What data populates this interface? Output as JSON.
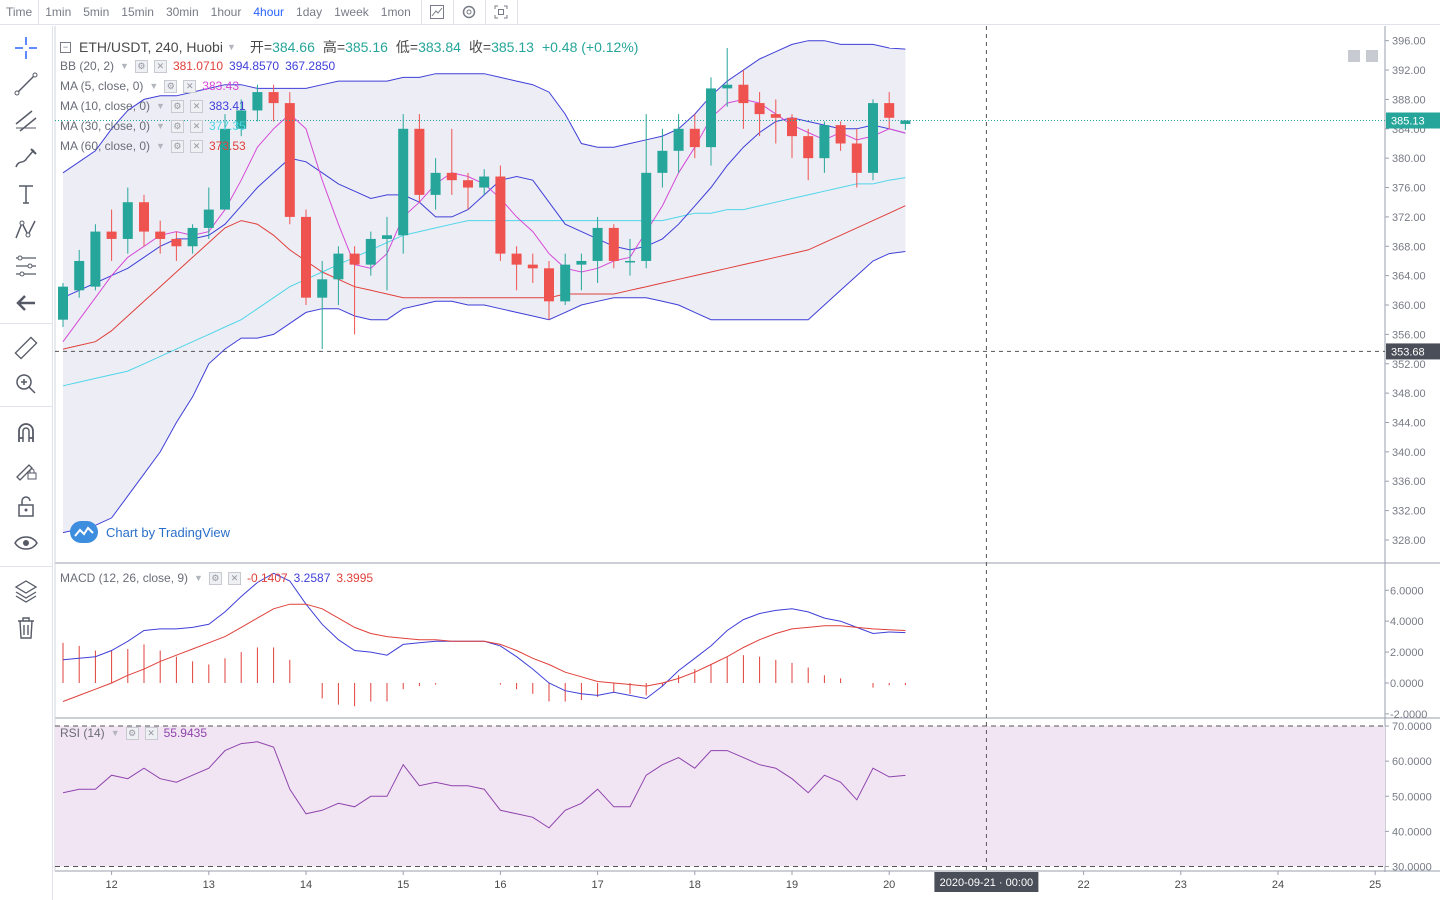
{
  "toolbar": {
    "timeframes": [
      "Time",
      "1min",
      "5min",
      "15min",
      "30min",
      "1hour",
      "4hour",
      "1day",
      "1week",
      "1mon"
    ],
    "active": "4hour",
    "icons": [
      "chart-style-icon",
      "settings-icon",
      "fullscreen-icon"
    ]
  },
  "left_tools": [
    "crosshair-icon",
    "trend-line-icon",
    "parallel-lines-icon",
    "brush-icon",
    "text-icon",
    "pattern-icon",
    "fib-icon",
    "back-arrow-icon",
    "ruler-icon",
    "zoom-in-icon",
    "magnet-icon",
    "lock-draw-icon",
    "lock-icon",
    "eye-icon",
    "layers-icon",
    "trash-icon"
  ],
  "legend": {
    "symbol": "ETH/USDT, 240, Huobi",
    "open_label": "开=",
    "open": "384.66",
    "high_label": "高=",
    "high": "385.16",
    "low_label": "低=",
    "low": "383.84",
    "close_label": "收=",
    "close": "385.13",
    "change": "+0.48 (+0.12%)",
    "bb_label": "BB (20, 2)",
    "bb_mid": "381.0710",
    "bb_up": "394.8570",
    "bb_low": "367.2850",
    "ma5_label": "MA (5, close, 0)",
    "ma5": "383.43",
    "ma10_label": "MA (10, close, 0)",
    "ma10": "383.41",
    "ma30_label": "MA (30, close, 0)",
    "ma30": "377.35",
    "ma60_label": "MA (60, close, 0)",
    "ma60": "373.53",
    "macd_label": "MACD (12, 26, close, 9)",
    "macd_hist": "-0.1407",
    "macd_line": "3.2587",
    "macd_signal": "3.3995",
    "rsi_label": "RSI (14)",
    "rsi": "55.9435"
  },
  "watermark": "Chart by TradingView",
  "colors": {
    "up": "#26a69a",
    "down": "#ef5350",
    "bb": "#3f3fd8",
    "ma5": "#d64bd6",
    "ma30": "#4fd6e8",
    "ma60": "#e0403a",
    "macd": "#3f3fd8",
    "signal": "#e0403a",
    "rsi": "#8e44ad",
    "rsi_bg": "#f2e5f3",
    "bb_fill": "#e8e8f4"
  },
  "chart_data": [
    {
      "type": "candlestick",
      "title": "ETH/USDT, 240, Huobi",
      "x_ticks": [
        "12",
        "13",
        "14",
        "15",
        "16",
        "17",
        "18",
        "19",
        "20",
        "2020-09-21 · 00:00",
        "22",
        "23",
        "24",
        "25"
      ],
      "y_ticks": [
        328,
        332,
        336,
        340,
        344,
        348,
        352,
        356,
        360,
        364,
        368,
        372,
        376,
        380,
        384,
        388,
        392,
        396
      ],
      "ylim": [
        325,
        398
      ],
      "last_price": "385.13",
      "crosshair_price": "353.68",
      "crosshair_time": "2020-09-21 · 00:00",
      "candles": [
        [
          358.0,
          362.5,
          357.0,
          363.0
        ],
        [
          362.0,
          366.0,
          361.0,
          367.5
        ],
        [
          362.5,
          370.0,
          362.0,
          371.0
        ],
        [
          370.0,
          369.0,
          366.0,
          373.0
        ],
        [
          369.0,
          374.0,
          367.0,
          376.0
        ],
        [
          374.0,
          370.0,
          368.0,
          375.0
        ],
        [
          370.0,
          369.0,
          367.0,
          371.5
        ],
        [
          369.0,
          368.0,
          366.0,
          370.0
        ],
        [
          368.0,
          370.5,
          367.0,
          371.0
        ],
        [
          370.5,
          373.0,
          369.0,
          376.0
        ],
        [
          373.0,
          384.0,
          373.0,
          386.0
        ],
        [
          384.0,
          386.5,
          383.0,
          388.0
        ],
        [
          386.5,
          389.0,
          385.0,
          390.0
        ],
        [
          389.0,
          387.5,
          385.0,
          390.0
        ],
        [
          387.5,
          372.0,
          371.0,
          389.0
        ],
        [
          372.0,
          361.0,
          360.0,
          373.0
        ],
        [
          361.0,
          363.5,
          354.0,
          366.0
        ],
        [
          363.5,
          367.0,
          360.0,
          368.0
        ],
        [
          367.0,
          365.5,
          356.0,
          368.0
        ],
        [
          365.5,
          369.0,
          364.0,
          370.0
        ],
        [
          369.0,
          369.5,
          362.0,
          372.0
        ],
        [
          369.5,
          384.0,
          367.0,
          386.0
        ],
        [
          384.0,
          375.0,
          374.0,
          386.0
        ],
        [
          375.0,
          378.0,
          373.0,
          380.0
        ],
        [
          378.0,
          377.0,
          375.0,
          384.0
        ],
        [
          377.0,
          376.0,
          373.0,
          378.0
        ],
        [
          376.0,
          377.5,
          375.0,
          378.5
        ],
        [
          377.5,
          367.0,
          366.0,
          379.0
        ],
        [
          367.0,
          365.5,
          362.0,
          368.0
        ],
        [
          365.5,
          365.0,
          363.0,
          367.0
        ],
        [
          365.0,
          360.5,
          358.0,
          366.0
        ],
        [
          360.5,
          365.5,
          360.0,
          367.0
        ],
        [
          365.5,
          366.0,
          362.0,
          367.0
        ],
        [
          366.0,
          370.5,
          363.0,
          372.0
        ],
        [
          370.5,
          366.0,
          365.0,
          371.0
        ],
        [
          366.0,
          366.0,
          364.0,
          369.0
        ],
        [
          366.0,
          378.0,
          365.0,
          386.0
        ],
        [
          378.0,
          381.0,
          376.0,
          384.0
        ],
        [
          381.0,
          384.0,
          378.0,
          386.0
        ],
        [
          384.0,
          381.5,
          380.0,
          386.0
        ],
        [
          381.5,
          389.5,
          379.0,
          391.0
        ],
        [
          389.5,
          390.0,
          387.0,
          395.0
        ],
        [
          390.0,
          387.5,
          384.0,
          392.0
        ],
        [
          387.5,
          386.0,
          383.0,
          389.0
        ],
        [
          386.0,
          385.5,
          382.0,
          388.0
        ],
        [
          385.5,
          383.0,
          380.0,
          386.0
        ],
        [
          383.0,
          380.0,
          377.0,
          384.0
        ],
        [
          380.0,
          384.5,
          378.0,
          385.0
        ],
        [
          384.5,
          382.0,
          381.0,
          385.0
        ],
        [
          382.0,
          378.0,
          376.0,
          384.0
        ],
        [
          378.0,
          387.5,
          377.0,
          388.0
        ],
        [
          387.5,
          385.5,
          384.0,
          389.0
        ],
        [
          384.66,
          385.13,
          383.84,
          385.16
        ]
      ],
      "bb_upper": [
        378.0,
        379.5,
        381.0,
        384.0,
        386.5,
        388.0,
        388.5,
        388.5,
        389.0,
        389.5,
        390.0,
        390.0,
        389.5,
        389.5,
        389.5,
        389.5,
        390.0,
        390.5,
        390.5,
        390.5,
        390.5,
        391.0,
        391.0,
        391.5,
        391.5,
        391.5,
        391.5,
        391.0,
        390.5,
        390.0,
        389.0,
        386.0,
        382.0,
        381.5,
        381.5,
        382.0,
        382.5,
        383.0,
        384.0,
        386.0,
        388.5,
        390.5,
        392.0,
        393.5,
        394.5,
        395.5,
        396.0,
        396.0,
        395.5,
        395.5,
        395.5,
        395.0,
        394.86
      ],
      "bb_lower": [
        329.0,
        329.5,
        330.0,
        331.0,
        334.0,
        337.0,
        340.0,
        344.0,
        347.5,
        352.0,
        354.0,
        355.5,
        355.5,
        356.0,
        357.5,
        359.0,
        359.5,
        359.5,
        358.5,
        358.0,
        358.0,
        359.5,
        360.0,
        360.5,
        360.5,
        360.0,
        360.0,
        359.5,
        359.0,
        358.5,
        358.0,
        359.0,
        360.0,
        360.5,
        361.0,
        361.0,
        361.0,
        360.5,
        360.0,
        359.0,
        358.0,
        358.0,
        358.0,
        358.0,
        358.0,
        358.0,
        358.0,
        360.0,
        362.0,
        364.0,
        366.0,
        367.0,
        367.29
      ],
      "ma5": [
        355.0,
        358.0,
        361.0,
        364.0,
        366.5,
        368.0,
        369.5,
        370.0,
        369.5,
        370.0,
        373.0,
        377.0,
        381.5,
        384.0,
        386.0,
        384.0,
        377.0,
        371.0,
        365.5,
        365.0,
        367.0,
        372.0,
        374.0,
        376.5,
        378.0,
        377.5,
        376.5,
        374.5,
        372.0,
        370.0,
        367.0,
        365.0,
        364.5,
        365.0,
        366.0,
        366.5,
        370.0,
        373.5,
        378.0,
        381.5,
        385.5,
        387.5,
        388.0,
        387.5,
        386.0,
        384.5,
        383.5,
        382.5,
        383.5,
        382.5,
        383.0,
        384.0,
        383.43
      ],
      "ma10": [
        361.0,
        362.0,
        363.0,
        364.0,
        365.0,
        366.5,
        368.0,
        369.0,
        369.0,
        369.5,
        371.0,
        373.5,
        376.0,
        378.0,
        380.0,
        379.5,
        378.0,
        376.5,
        375.5,
        374.5,
        375.0,
        375.0,
        374.0,
        372.0,
        372.0,
        373.0,
        375.0,
        377.0,
        377.5,
        377.0,
        374.0,
        371.0,
        370.0,
        369.0,
        368.0,
        367.5,
        368.0,
        369.0,
        371.0,
        373.5,
        376.0,
        379.0,
        381.5,
        383.5,
        385.0,
        385.5,
        385.0,
        384.5,
        384.0,
        384.0,
        384.5,
        384.0,
        383.41
      ],
      "ma30": [
        349.0,
        349.5,
        350.0,
        350.5,
        351.0,
        352.0,
        353.0,
        354.0,
        355.0,
        356.0,
        357.0,
        358.0,
        359.5,
        361.0,
        362.5,
        363.5,
        364.5,
        365.5,
        366.5,
        367.5,
        368.5,
        369.5,
        370.0,
        370.5,
        371.0,
        371.5,
        371.5,
        371.5,
        371.5,
        371.5,
        371.5,
        371.5,
        371.5,
        371.5,
        371.5,
        371.5,
        371.5,
        371.5,
        372.0,
        372.5,
        372.5,
        373.0,
        373.0,
        373.5,
        374.0,
        374.5,
        375.0,
        375.5,
        376.0,
        376.5,
        376.5,
        377.0,
        377.35
      ],
      "ma60": [
        354.0,
        354.5,
        355.0,
        356.5,
        358.5,
        360.5,
        362.5,
        364.5,
        366.5,
        368.5,
        370.5,
        371.5,
        371.0,
        369.5,
        367.5,
        366.0,
        364.5,
        363.5,
        362.5,
        362.0,
        361.5,
        361.0,
        361.0,
        361.0,
        361.0,
        361.0,
        361.0,
        361.0,
        361.0,
        361.0,
        361.0,
        361.5,
        361.5,
        361.5,
        361.5,
        362.0,
        362.5,
        363.0,
        363.5,
        364.0,
        364.5,
        365.0,
        365.5,
        366.0,
        366.5,
        367.0,
        367.5,
        368.5,
        369.5,
        370.5,
        371.5,
        372.5,
        373.53
      ]
    },
    {
      "type": "line",
      "title": "MACD (12, 26, close, 9)",
      "y_ticks": [
        -2.0,
        0.0,
        2.0,
        4.0,
        6.0
      ],
      "ylim": [
        -2.2,
        7.7
      ],
      "macd": [
        1.5,
        1.6,
        1.7,
        2.1,
        2.7,
        3.4,
        3.5,
        3.5,
        3.6,
        3.8,
        4.6,
        5.6,
        6.5,
        7.1,
        6.6,
        5.1,
        3.8,
        2.8,
        2.1,
        2.0,
        1.8,
        2.5,
        2.6,
        2.7,
        2.7,
        2.7,
        2.7,
        2.4,
        1.7,
        0.9,
        0.0,
        -0.5,
        -0.7,
        -0.8,
        -0.6,
        -0.8,
        -1.0,
        -0.2,
        0.8,
        1.6,
        2.4,
        3.4,
        4.1,
        4.5,
        4.7,
        4.8,
        4.6,
        4.2,
        4.0,
        3.6,
        3.2,
        3.3,
        3.26
      ],
      "signal": [
        -1.2,
        -0.8,
        -0.4,
        0.0,
        0.5,
        0.9,
        1.4,
        1.8,
        2.2,
        2.6,
        3.0,
        3.6,
        4.2,
        4.8,
        5.1,
        5.1,
        4.8,
        4.2,
        3.6,
        3.2,
        3.0,
        2.9,
        2.8,
        2.8,
        2.7,
        2.7,
        2.7,
        2.5,
        2.1,
        1.6,
        1.2,
        0.7,
        0.4,
        0.1,
        0.0,
        -0.1,
        -0.2,
        0.0,
        0.3,
        0.7,
        1.2,
        1.7,
        2.3,
        2.8,
        3.2,
        3.5,
        3.6,
        3.7,
        3.7,
        3.6,
        3.5,
        3.45,
        3.4
      ],
      "hist": [
        2.6,
        2.4,
        2.1,
        2.1,
        2.2,
        2.5,
        2.1,
        1.7,
        1.4,
        1.2,
        1.6,
        2.0,
        2.3,
        2.3,
        1.5,
        0.0,
        -1.0,
        -1.4,
        -1.5,
        -1.2,
        -1.2,
        -0.4,
        -0.2,
        -0.1,
        0.0,
        0.0,
        0.0,
        -0.1,
        -0.4,
        -0.7,
        -1.2,
        -1.2,
        -1.1,
        -0.9,
        -0.6,
        -0.7,
        -0.8,
        -0.2,
        0.5,
        0.9,
        1.2,
        1.7,
        1.8,
        1.7,
        1.5,
        1.3,
        1.0,
        0.5,
        0.3,
        0.0,
        -0.3,
        -0.15,
        -0.14
      ]
    },
    {
      "type": "line",
      "title": "RSI (14)",
      "y_ticks": [
        30.0,
        40.0,
        50.0,
        60.0,
        70.0
      ],
      "ylim": [
        29,
        72
      ],
      "band": [
        30,
        70
      ],
      "rsi": [
        51,
        52,
        52,
        56,
        55,
        58,
        55,
        54,
        56,
        58,
        63,
        65,
        65.5,
        64,
        52,
        45,
        46,
        48,
        47,
        50,
        50,
        59,
        53,
        54,
        53,
        53,
        52,
        46,
        45,
        44,
        41,
        46,
        48,
        52,
        47,
        47,
        56,
        59,
        61,
        58,
        63,
        63,
        61,
        59,
        58,
        55,
        51,
        56,
        54,
        49,
        58,
        55.5,
        55.94
      ]
    }
  ]
}
